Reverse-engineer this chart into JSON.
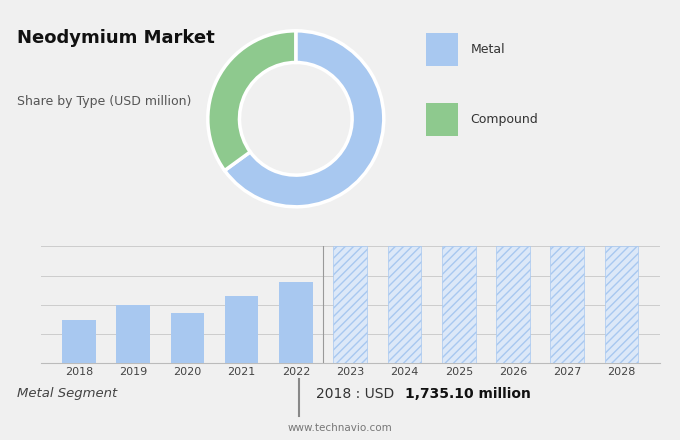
{
  "title": "Neodymium Market",
  "subtitle": "Share by Type (USD million)",
  "bg_color_top": "#d8d8d8",
  "bg_color_bottom": "#f0f0f0",
  "donut_colors": [
    "#a8c8f0",
    "#8ec98e"
  ],
  "donut_labels": [
    "Metal",
    "Compound"
  ],
  "donut_values": [
    65,
    35
  ],
  "bar_years_solid": [
    2018,
    2019,
    2020,
    2021,
    2022
  ],
  "bar_values_solid": [
    1735,
    1790,
    1760,
    1820,
    1870
  ],
  "bar_years_hatched": [
    2023,
    2024,
    2025,
    2026,
    2027,
    2028
  ],
  "bar_values_hatched": [
    1950,
    1950,
    1950,
    1950,
    1950,
    1950
  ],
  "bar_color_solid": "#a8c8f0",
  "bar_color_hatched_face": "#dce8f8",
  "bar_color_hatched_edge": "#a8c8f0",
  "hatch_pattern": "////",
  "footer_left": "Metal Segment",
  "footer_sep": "|",
  "footer_right_normal": "2018 : USD ",
  "footer_right_bold": "1,735.10 million",
  "footer_website": "www.technavio.com",
  "ymin": 1580,
  "ymax": 2000,
  "grid_count": 5
}
